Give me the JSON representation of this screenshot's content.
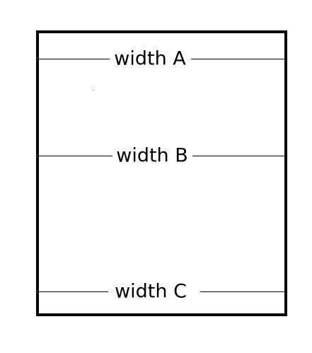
{
  "diagram": {
    "labels": {
      "a": "width A",
      "b": "width B",
      "c": "width C"
    },
    "colors": {
      "stroke": "#000000",
      "background": "#ffffff"
    }
  }
}
